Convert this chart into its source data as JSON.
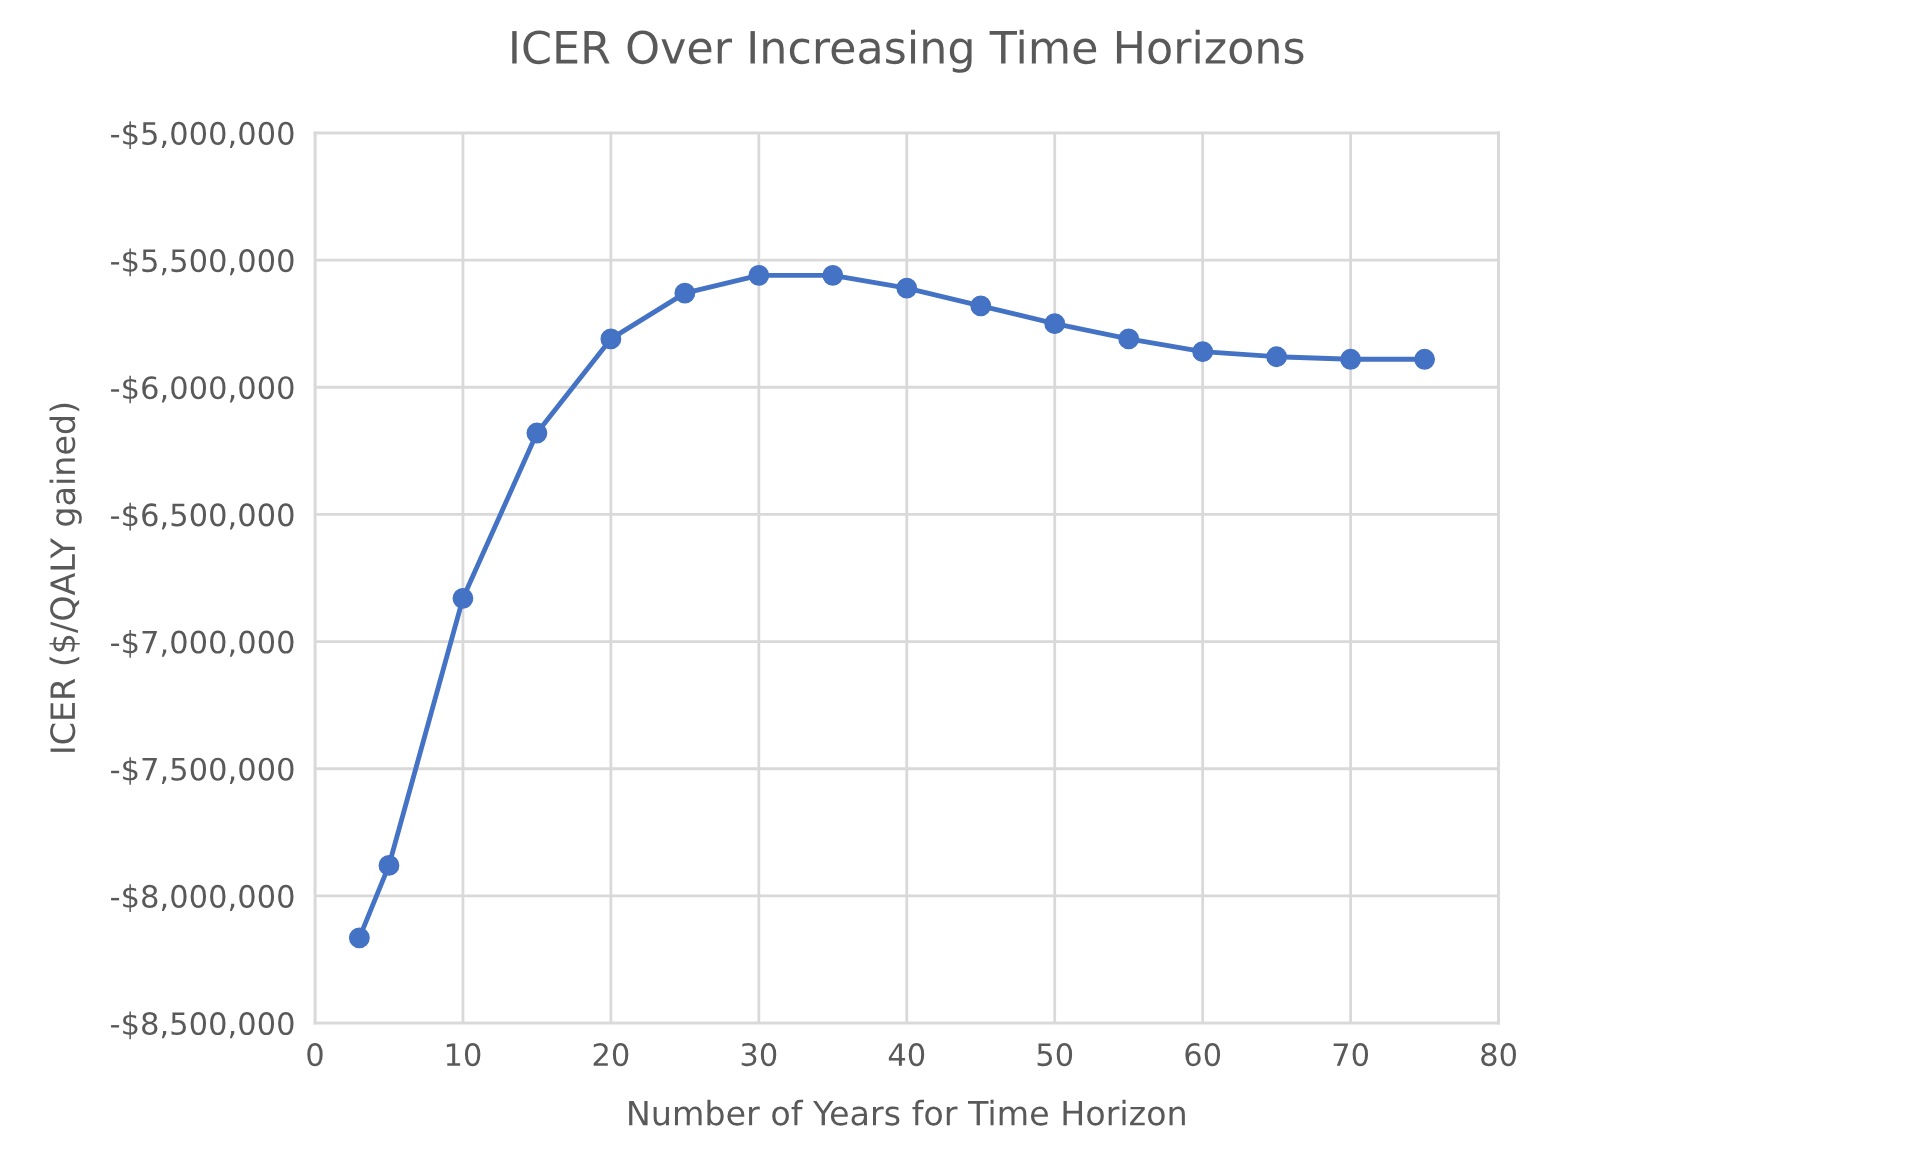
{
  "chart_data": {
    "type": "line",
    "title": "ICER Over Increasing Time Horizons",
    "xlabel": "Number of Years for Time Horizon",
    "ylabel": "ICER ($/QALY gained)",
    "series": [
      {
        "color": "#4472c4",
        "x": [
          3,
          5,
          10,
          15,
          20,
          25,
          30,
          35,
          40,
          45,
          50,
          55,
          60,
          65,
          70,
          75
        ],
        "values": [
          -8165000,
          -7880000,
          -6830000,
          -6180000,
          -5810000,
          -5630000,
          -5560000,
          -5560000,
          -5610000,
          -5680000,
          -5750000,
          -5810000,
          -5860000,
          -5880000,
          -5890000,
          -5890000
        ]
      }
    ],
    "xlim": [
      0,
      80
    ],
    "xticks": [
      0,
      10,
      20,
      30,
      40,
      50,
      60,
      70,
      80
    ],
    "ylim": [
      -8500000,
      -5000000
    ],
    "yticks": [
      {
        "value": -8500000,
        "label": "-$8,500,000"
      },
      {
        "value": -8000000,
        "label": "-$8,000,000"
      },
      {
        "value": -7500000,
        "label": "-$7,500,000"
      },
      {
        "value": -7000000,
        "label": "-$7,000,000"
      },
      {
        "value": -6500000,
        "label": "-$6,500,000"
      },
      {
        "value": -6000000,
        "label": "-$6,000,000"
      },
      {
        "value": -5500000,
        "label": "-$5,500,000"
      },
      {
        "value": -5000000,
        "label": "-$5,000,000"
      }
    ],
    "grid": true,
    "marker": "circle",
    "line_style": "solid",
    "legend": false
  }
}
